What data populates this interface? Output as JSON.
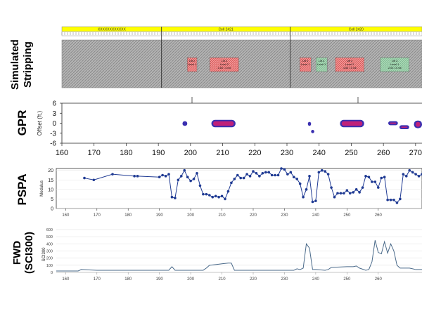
{
  "row_labels": {
    "stripping": [
      "Simulated",
      "Stripping"
    ],
    "gpr": "GPR",
    "pspa": "PSPA",
    "fwd": [
      "FWD",
      "(SCI300)"
    ]
  },
  "colors": {
    "cell_bar": "#ffff00",
    "hatch_gray": "#a8a8a8",
    "lift_red": "#e87070",
    "lift_green": "#8fc8a0",
    "gpr_outer": "#3a2fb0",
    "gpr_inner": "#c0207a",
    "pspa_line": "#1f3a93",
    "fwd_line": "#4a6a8a"
  },
  "stripping": {
    "cells": [
      {
        "label": "XXXXXXXXXXXX",
        "x_start": 160,
        "x_end": 191
      },
      {
        "label": "Cell 2421",
        "x_start": 191,
        "x_end": 231
      },
      {
        "label": "Cell 2420",
        "x_start": 231,
        "x_end": 272
      }
    ],
    "boxes": [
      {
        "l1": "Lift 2",
        "l2": "Level 1",
        "l3": "",
        "x_start": 199,
        "x_end": 202,
        "color": "red"
      },
      {
        "l1": "Lift 2",
        "l2": "Level 2",
        "l3": "4.50 / 3 mil",
        "x_start": 206,
        "x_end": 215,
        "color": "red"
      },
      {
        "l1": "Lift 2",
        "l2": "Level 1",
        "l3": "",
        "x_start": 234,
        "x_end": 237.5,
        "color": "red"
      },
      {
        "l1": "Lift 2",
        "l2": "Level 1",
        "l3": "",
        "x_start": 239,
        "x_end": 242.5,
        "color": "green"
      },
      {
        "l1": "Lift 2",
        "l2": "Level 2",
        "l3": "4.50 / 3 mil",
        "x_start": 245,
        "x_end": 254,
        "color": "red"
      },
      {
        "l1": "Lift 3",
        "l2": "Level 1",
        "l3": "2.00 / 3 mil",
        "x_start": 259,
        "x_end": 268,
        "color": "green"
      }
    ]
  },
  "chart_data": [
    {
      "type": "scatter",
      "name": "GPR",
      "xlabel": "",
      "ylabel": "Offset (ft.)",
      "xlim": [
        160,
        274
      ],
      "ylim": [
        -6,
        6
      ],
      "xticks": [
        160,
        170,
        180,
        190,
        200,
        210,
        220,
        230,
        240,
        250,
        260,
        270
      ],
      "yticks": [
        6,
        3,
        0,
        -3,
        -6
      ],
      "blobs": [
        {
          "x1": 197.5,
          "x2": 199,
          "y1": -0.8,
          "y2": 0.6
        },
        {
          "x1": 206.5,
          "x2": 214,
          "y1": -1.2,
          "y2": 1.0
        },
        {
          "x1": 236.5,
          "x2": 237.5,
          "y1": -0.8,
          "y2": 0.4
        },
        {
          "x1": 237.5,
          "x2": 238.5,
          "y1": -3.0,
          "y2": -2.0
        },
        {
          "x1": 246.5,
          "x2": 254,
          "y1": -1.2,
          "y2": 1.0
        },
        {
          "x1": 261.5,
          "x2": 264.5,
          "y1": -0.6,
          "y2": 0.6
        },
        {
          "x1": 265,
          "x2": 268,
          "y1": -1.8,
          "y2": -0.6
        },
        {
          "x1": 269.5,
          "x2": 274,
          "y1": -1.5,
          "y2": 0.8
        }
      ]
    },
    {
      "type": "line",
      "name": "PSPA",
      "xlabel": "",
      "ylabel": "Modulus",
      "xlim": [
        157,
        274
      ],
      "ylim": [
        0,
        21
      ],
      "xticks": [
        160,
        170,
        180,
        190,
        200,
        210,
        220,
        230,
        240,
        250,
        260
      ],
      "yticks": [
        0,
        5,
        10,
        15,
        20
      ],
      "x": [
        166,
        169,
        175,
        182,
        183,
        190,
        191,
        192,
        193,
        194,
        195,
        196,
        197,
        198,
        199,
        200,
        201,
        202,
        203,
        204,
        205,
        206,
        207,
        208,
        209,
        210,
        211,
        212,
        213,
        214,
        215,
        216,
        217,
        218,
        219,
        220,
        221,
        222,
        223,
        224,
        225,
        226,
        227,
        228,
        229,
        230,
        231,
        232,
        233,
        234,
        235,
        236,
        237,
        238,
        239,
        240,
        241,
        242,
        243,
        244,
        245,
        246,
        247,
        248,
        249,
        250,
        251,
        252,
        253,
        254,
        255,
        256,
        257,
        258,
        259,
        260,
        261,
        262,
        263,
        264,
        265,
        266,
        267,
        268,
        269,
        270,
        271,
        272,
        273,
        274
      ],
      "y": [
        16,
        15,
        18,
        17,
        17,
        16.5,
        17.5,
        17,
        18,
        6,
        5.5,
        15,
        17,
        20,
        16.5,
        14.5,
        15.5,
        18.5,
        12,
        7.5,
        7.5,
        7,
        6,
        6.5,
        6,
        6.5,
        5,
        9,
        13.5,
        15.5,
        17.5,
        16,
        16,
        18,
        17,
        19.5,
        18.5,
        17,
        18.5,
        19,
        19,
        17.5,
        17.5,
        17.5,
        21,
        20.5,
        18,
        19,
        16.5,
        15.5,
        13,
        6,
        10,
        17,
        3.5,
        4,
        19,
        20,
        19.5,
        18,
        11,
        6,
        8,
        8,
        8,
        9.5,
        8,
        8.5,
        10,
        8.5,
        11,
        17,
        16.5,
        14,
        14,
        11,
        16,
        16.5,
        4.5,
        4.5,
        4.5,
        3,
        5,
        18,
        17,
        20,
        19,
        18,
        17,
        18
      ]
    },
    {
      "type": "line",
      "name": "FWD",
      "xlabel": "",
      "ylabel": "SCI300",
      "xlim": [
        157,
        274
      ],
      "ylim": [
        0,
        600
      ],
      "xticks": [
        160,
        170,
        180,
        190,
        200,
        210,
        220,
        230,
        240,
        250,
        260
      ],
      "yticks": [
        0,
        100,
        200,
        300,
        400,
        500,
        600
      ],
      "x": [
        157,
        163,
        164,
        165,
        170,
        175,
        180,
        185,
        190,
        193,
        194,
        195,
        200,
        204,
        205,
        206,
        208,
        210,
        211,
        212,
        213,
        214,
        220,
        225,
        230,
        233,
        234,
        235,
        236,
        237,
        238,
        239,
        240,
        243,
        244,
        245,
        250,
        252,
        253,
        254,
        256,
        257,
        258,
        259,
        260,
        261,
        262,
        263,
        264,
        265,
        266,
        267,
        270,
        271,
        272,
        274
      ],
      "y": [
        20,
        20,
        20,
        40,
        30,
        30,
        30,
        30,
        30,
        30,
        80,
        30,
        30,
        30,
        60,
        100,
        110,
        120,
        125,
        130,
        130,
        30,
        30,
        30,
        30,
        30,
        50,
        40,
        60,
        400,
        340,
        40,
        40,
        30,
        40,
        70,
        80,
        80,
        90,
        60,
        30,
        40,
        150,
        450,
        280,
        260,
        430,
        270,
        400,
        300,
        100,
        60,
        60,
        50,
        40,
        40
      ]
    }
  ]
}
